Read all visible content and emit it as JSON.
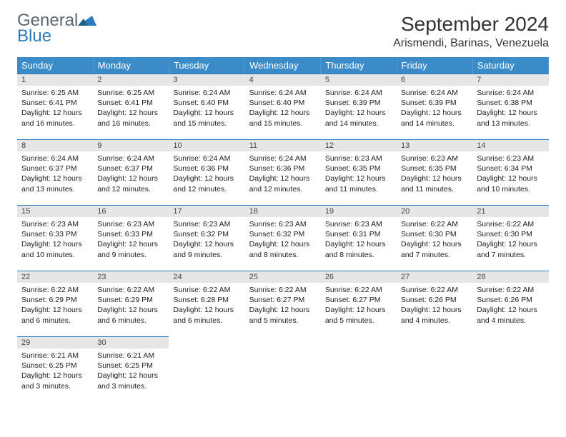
{
  "brand": {
    "general": "General",
    "blue": "Blue"
  },
  "header": {
    "title": "September 2024",
    "location": "Arismendi, Barinas, Venezuela"
  },
  "weekdays": [
    "Sunday",
    "Monday",
    "Tuesday",
    "Wednesday",
    "Thursday",
    "Friday",
    "Saturday"
  ],
  "colors": {
    "header_bg": "#3b8bc9",
    "header_fg": "#ffffff",
    "daynum_bg": "#e6e6e6",
    "border_accent": "#2b7bbd"
  },
  "days": [
    {
      "n": "1",
      "sr": "6:25 AM",
      "ss": "6:41 PM",
      "dl": "12 hours and 16 minutes."
    },
    {
      "n": "2",
      "sr": "6:25 AM",
      "ss": "6:41 PM",
      "dl": "12 hours and 16 minutes."
    },
    {
      "n": "3",
      "sr": "6:24 AM",
      "ss": "6:40 PM",
      "dl": "12 hours and 15 minutes."
    },
    {
      "n": "4",
      "sr": "6:24 AM",
      "ss": "6:40 PM",
      "dl": "12 hours and 15 minutes."
    },
    {
      "n": "5",
      "sr": "6:24 AM",
      "ss": "6:39 PM",
      "dl": "12 hours and 14 minutes."
    },
    {
      "n": "6",
      "sr": "6:24 AM",
      "ss": "6:39 PM",
      "dl": "12 hours and 14 minutes."
    },
    {
      "n": "7",
      "sr": "6:24 AM",
      "ss": "6:38 PM",
      "dl": "12 hours and 13 minutes."
    },
    {
      "n": "8",
      "sr": "6:24 AM",
      "ss": "6:37 PM",
      "dl": "12 hours and 13 minutes."
    },
    {
      "n": "9",
      "sr": "6:24 AM",
      "ss": "6:37 PM",
      "dl": "12 hours and 12 minutes."
    },
    {
      "n": "10",
      "sr": "6:24 AM",
      "ss": "6:36 PM",
      "dl": "12 hours and 12 minutes."
    },
    {
      "n": "11",
      "sr": "6:24 AM",
      "ss": "6:36 PM",
      "dl": "12 hours and 12 minutes."
    },
    {
      "n": "12",
      "sr": "6:23 AM",
      "ss": "6:35 PM",
      "dl": "12 hours and 11 minutes."
    },
    {
      "n": "13",
      "sr": "6:23 AM",
      "ss": "6:35 PM",
      "dl": "12 hours and 11 minutes."
    },
    {
      "n": "14",
      "sr": "6:23 AM",
      "ss": "6:34 PM",
      "dl": "12 hours and 10 minutes."
    },
    {
      "n": "15",
      "sr": "6:23 AM",
      "ss": "6:33 PM",
      "dl": "12 hours and 10 minutes."
    },
    {
      "n": "16",
      "sr": "6:23 AM",
      "ss": "6:33 PM",
      "dl": "12 hours and 9 minutes."
    },
    {
      "n": "17",
      "sr": "6:23 AM",
      "ss": "6:32 PM",
      "dl": "12 hours and 9 minutes."
    },
    {
      "n": "18",
      "sr": "6:23 AM",
      "ss": "6:32 PM",
      "dl": "12 hours and 8 minutes."
    },
    {
      "n": "19",
      "sr": "6:23 AM",
      "ss": "6:31 PM",
      "dl": "12 hours and 8 minutes."
    },
    {
      "n": "20",
      "sr": "6:22 AM",
      "ss": "6:30 PM",
      "dl": "12 hours and 7 minutes."
    },
    {
      "n": "21",
      "sr": "6:22 AM",
      "ss": "6:30 PM",
      "dl": "12 hours and 7 minutes."
    },
    {
      "n": "22",
      "sr": "6:22 AM",
      "ss": "6:29 PM",
      "dl": "12 hours and 6 minutes."
    },
    {
      "n": "23",
      "sr": "6:22 AM",
      "ss": "6:29 PM",
      "dl": "12 hours and 6 minutes."
    },
    {
      "n": "24",
      "sr": "6:22 AM",
      "ss": "6:28 PM",
      "dl": "12 hours and 6 minutes."
    },
    {
      "n": "25",
      "sr": "6:22 AM",
      "ss": "6:27 PM",
      "dl": "12 hours and 5 minutes."
    },
    {
      "n": "26",
      "sr": "6:22 AM",
      "ss": "6:27 PM",
      "dl": "12 hours and 5 minutes."
    },
    {
      "n": "27",
      "sr": "6:22 AM",
      "ss": "6:26 PM",
      "dl": "12 hours and 4 minutes."
    },
    {
      "n": "28",
      "sr": "6:22 AM",
      "ss": "6:26 PM",
      "dl": "12 hours and 4 minutes."
    },
    {
      "n": "29",
      "sr": "6:21 AM",
      "ss": "6:25 PM",
      "dl": "12 hours and 3 minutes."
    },
    {
      "n": "30",
      "sr": "6:21 AM",
      "ss": "6:25 PM",
      "dl": "12 hours and 3 minutes."
    }
  ],
  "labels": {
    "sunrise": "Sunrise:",
    "sunset": "Sunset:",
    "daylight": "Daylight:"
  }
}
